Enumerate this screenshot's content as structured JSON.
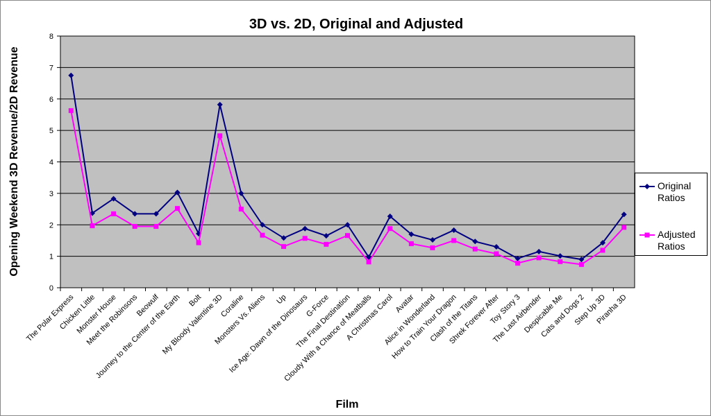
{
  "chart_data": {
    "type": "line",
    "title": "3D vs. 2D, Original and Adjusted",
    "x_label": "Film",
    "y_label": "Opening Weekend 3D Revenue/2D Revenue",
    "categories": [
      "The Polar Express",
      "Chicken Little",
      "Monster House",
      "Meet the Robinsons",
      "Beowulf",
      "Journey to the Center of the Earth",
      "Bolt",
      "My Bloody Valentine 3D",
      "Coraline",
      "Monsters Vs. Aliens",
      "Up",
      "Ice Age: Dawn of the Dinosaurs",
      "G-Force",
      "The Final Destination",
      "Cloudy With a Chance of Meatballs",
      "A Christmas Carol",
      "Avatar",
      "Alice in Wonderland",
      "How to Train Your Dragon",
      "Clash of the Titans",
      "Shrek Forever After",
      "Toy Story 3",
      "The Last Airbender",
      "Despicable Me",
      "Cats and Dogs 2",
      "Step Up 3D",
      "Piranha 3D"
    ],
    "series": [
      {
        "name": "Original Ratios",
        "color": "#000080",
        "marker": "diamond",
        "values": [
          6.75,
          2.37,
          2.83,
          2.35,
          2.35,
          3.03,
          1.72,
          5.82,
          3.0,
          2.0,
          1.58,
          1.88,
          1.65,
          2.0,
          0.97,
          2.27,
          1.7,
          1.52,
          1.83,
          1.47,
          1.3,
          0.93,
          1.15,
          1.01,
          0.9,
          1.43,
          2.33
        ]
      },
      {
        "name": "Adjusted Ratios",
        "color": "#ff00ff",
        "marker": "square",
        "values": [
          5.63,
          1.97,
          2.35,
          1.95,
          1.95,
          2.52,
          1.43,
          4.83,
          2.5,
          1.67,
          1.31,
          1.57,
          1.38,
          1.66,
          0.82,
          1.88,
          1.4,
          1.27,
          1.5,
          1.23,
          1.08,
          0.78,
          0.95,
          0.83,
          0.74,
          1.19,
          1.92
        ]
      }
    ],
    "ylim": [
      0,
      8
    ],
    "yticks": [
      0,
      1,
      2,
      3,
      4,
      5,
      6,
      7,
      8
    ],
    "grid": true,
    "legend": "right"
  }
}
